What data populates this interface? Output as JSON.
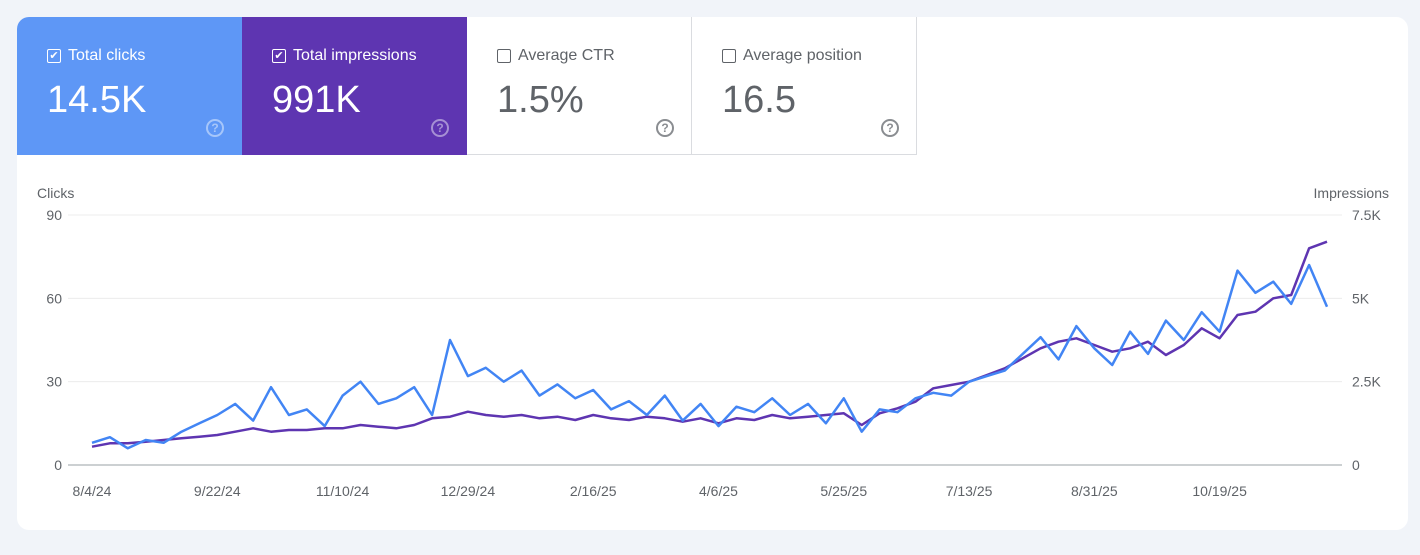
{
  "metrics": [
    {
      "label": "Total clicks",
      "value": "14.5K",
      "checked": true,
      "color": "#5e97f6"
    },
    {
      "label": "Total impressions",
      "value": "991K",
      "checked": true,
      "color": "#5e35b1"
    },
    {
      "label": "Average CTR",
      "value": "1.5%",
      "checked": false
    },
    {
      "label": "Average position",
      "value": "16.5",
      "checked": false
    }
  ],
  "icons": {
    "checkbox": "checkbox-icon",
    "help": "help-circle-icon"
  },
  "chart_data": {
    "type": "line",
    "ylabel_left": "Clicks",
    "ylabel_right": "Impressions",
    "yticks_left": [
      "0",
      "30",
      "60",
      "90"
    ],
    "yticks_right": [
      "0",
      "2.5K",
      "5K",
      "7.5K"
    ],
    "ylim_left": [
      0,
      90
    ],
    "ylim_right": [
      0,
      7500
    ],
    "xticks": [
      "8/4/24",
      "9/22/24",
      "11/10/24",
      "12/29/24",
      "2/16/25",
      "4/6/25",
      "5/25/25",
      "7/13/25",
      "8/31/25",
      "10/19/25"
    ],
    "grid": true,
    "x": [
      "2024-08-04",
      "2024-08-11",
      "2024-08-18",
      "2024-08-25",
      "2024-09-01",
      "2024-09-08",
      "2024-09-15",
      "2024-09-22",
      "2024-09-29",
      "2024-10-06",
      "2024-10-13",
      "2024-10-20",
      "2024-10-27",
      "2024-11-03",
      "2024-11-10",
      "2024-11-17",
      "2024-11-24",
      "2024-12-01",
      "2024-12-08",
      "2024-12-15",
      "2024-12-22",
      "2024-12-29",
      "2025-01-05",
      "2025-01-12",
      "2025-01-19",
      "2025-01-26",
      "2025-02-02",
      "2025-02-09",
      "2025-02-16",
      "2025-02-23",
      "2025-03-02",
      "2025-03-09",
      "2025-03-16",
      "2025-03-23",
      "2025-03-30",
      "2025-04-06",
      "2025-04-13",
      "2025-04-20",
      "2025-04-27",
      "2025-05-04",
      "2025-05-11",
      "2025-05-18",
      "2025-05-25",
      "2025-06-01",
      "2025-06-08",
      "2025-06-15",
      "2025-06-22",
      "2025-06-29",
      "2025-07-06",
      "2025-07-13",
      "2025-07-20",
      "2025-07-27",
      "2025-08-03",
      "2025-08-10",
      "2025-08-17",
      "2025-08-24",
      "2025-08-31",
      "2025-09-07",
      "2025-09-14",
      "2025-09-21",
      "2025-09-28",
      "2025-10-05",
      "2025-10-12",
      "2025-10-19",
      "2025-10-26",
      "2025-11-02",
      "2025-11-09",
      "2025-11-16",
      "2025-11-23",
      "2025-11-30"
    ],
    "series": [
      {
        "name": "Clicks",
        "axis": "left",
        "color": "#4285f4",
        "values": [
          8,
          10,
          6,
          9,
          8,
          12,
          15,
          18,
          22,
          16,
          28,
          18,
          20,
          14,
          25,
          30,
          22,
          24,
          28,
          18,
          45,
          32,
          35,
          30,
          34,
          25,
          29,
          24,
          27,
          20,
          23,
          18,
          25,
          16,
          22,
          14,
          21,
          19,
          24,
          18,
          22,
          15,
          24,
          12,
          20,
          19,
          24,
          26,
          25,
          30,
          32,
          34,
          40,
          46,
          38,
          50,
          42,
          36,
          48,
          40,
          52,
          45,
          55,
          48,
          70,
          62,
          66,
          58,
          72,
          57
        ]
      },
      {
        "name": "Impressions",
        "axis": "right",
        "color": "#5e35b1",
        "values": [
          550,
          650,
          650,
          700,
          750,
          800,
          850,
          900,
          1000,
          1100,
          1000,
          1050,
          1050,
          1100,
          1100,
          1200,
          1150,
          1100,
          1200,
          1400,
          1450,
          1600,
          1500,
          1450,
          1500,
          1400,
          1450,
          1350,
          1500,
          1400,
          1350,
          1450,
          1400,
          1300,
          1400,
          1250,
          1400,
          1350,
          1500,
          1400,
          1450,
          1500,
          1550,
          1200,
          1550,
          1700,
          1900,
          2300,
          2400,
          2500,
          2700,
          2900,
          3200,
          3500,
          3700,
          3800,
          3600,
          3400,
          3500,
          3700,
          3300,
          3600,
          4100,
          3800,
          4500,
          4600,
          5000,
          5100,
          6500,
          6700
        ]
      }
    ]
  }
}
